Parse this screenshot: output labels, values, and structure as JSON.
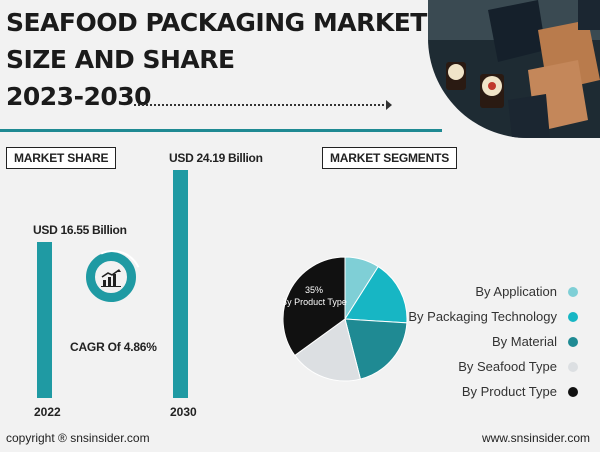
{
  "title": {
    "line1": "SEAFOOD PACKAGING MARKET",
    "line2": "SIZE AND SHARE",
    "line3": "2023-2030"
  },
  "market_share": {
    "heading": "MARKET SHARE",
    "bars": [
      {
        "year": "2022",
        "value_label": "USD 16.55 Billion",
        "value": 16.55
      },
      {
        "year": "2030",
        "value_label": "USD 24.19 Billion",
        "value": 24.19
      }
    ],
    "cagr_label": "CAGR Of 4.86%"
  },
  "segments": {
    "heading": "MARKET SEGMENTS",
    "pie_label_pct": "35%",
    "pie_label_name": "By Product Type"
  },
  "chart_data": {
    "type": "pie",
    "slices": [
      {
        "label": "By Application",
        "value": 9,
        "color": "#7fcfd6"
      },
      {
        "label": "By Packaging Technology",
        "value": 17,
        "color": "#17b6c4"
      },
      {
        "label": "By Material",
        "value": 20,
        "color": "#1f8a93"
      },
      {
        "label": "By Seafood Type",
        "value": 19,
        "color": "#dcdfe2"
      },
      {
        "label": "By Product Type",
        "value": 35,
        "color": "#111111"
      }
    ]
  },
  "footer": {
    "copyright": "copyright ® snsinsider.com",
    "website": "www.snsinsider.com"
  },
  "colors": {
    "accent": "#1f9aa3"
  }
}
